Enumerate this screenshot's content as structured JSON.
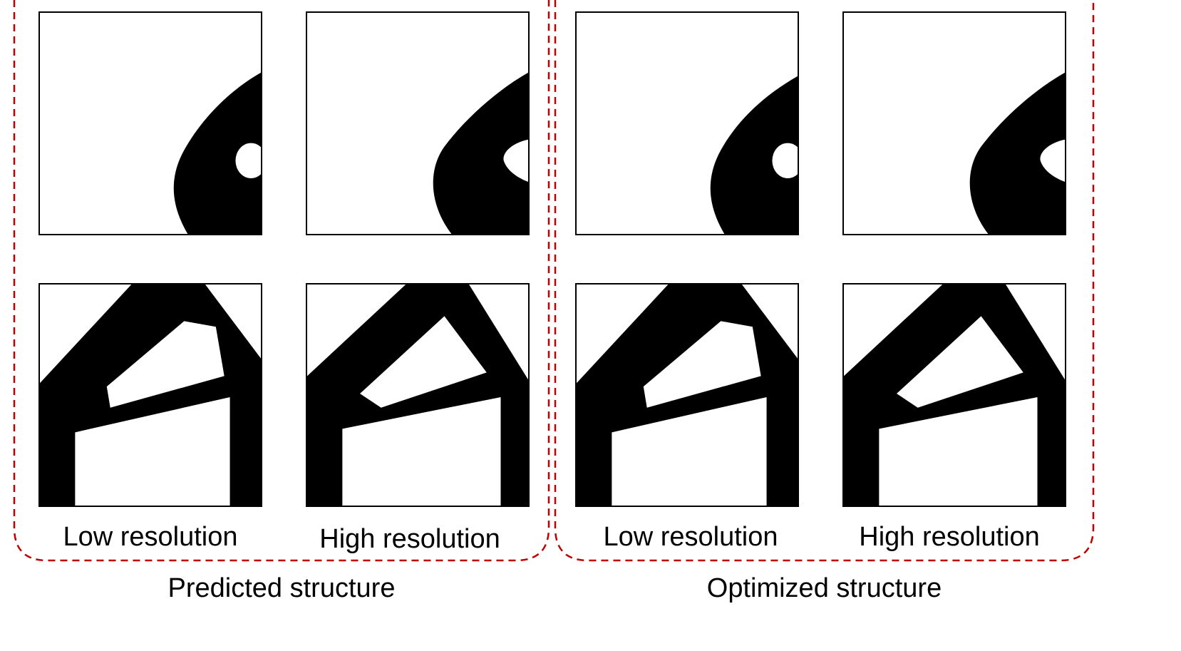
{
  "groups": [
    {
      "caption": "Predicted structure",
      "low_label": "Low resolution",
      "high_label": "High resolution"
    },
    {
      "caption": "Optimized structure",
      "low_label": "Low resolution",
      "high_label": "High resolution"
    }
  ],
  "colors": {
    "dashed_border": "#c00000",
    "material": "#000000",
    "void": "#ffffff"
  }
}
